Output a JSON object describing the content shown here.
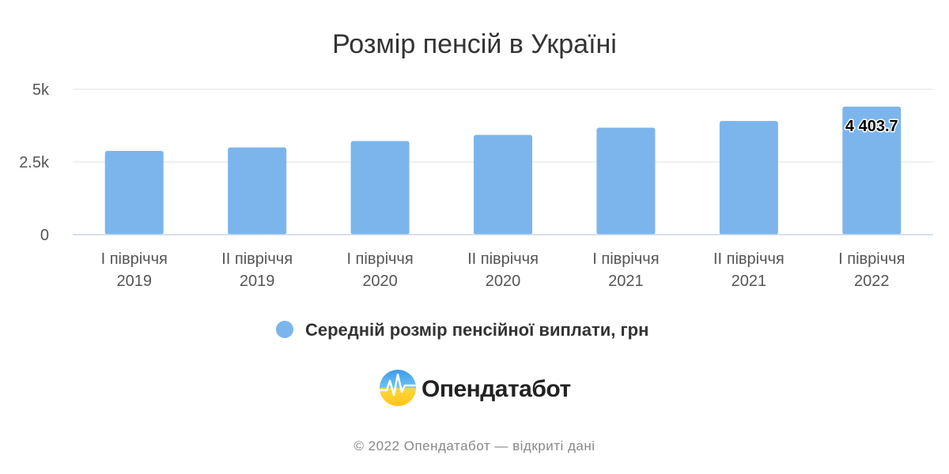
{
  "chart_data": {
    "type": "bar",
    "title": "Розмір пенсій в Україні",
    "categories": [
      [
        "I півріччя",
        "2019"
      ],
      [
        "II півріччя",
        "2019"
      ],
      [
        "I півріччя",
        "2020"
      ],
      [
        "II півріччя",
        "2020"
      ],
      [
        "I півріччя",
        "2021"
      ],
      [
        "II півріччя",
        "2021"
      ],
      [
        "I півріччя",
        "2022"
      ]
    ],
    "series": [
      {
        "name": "Середній розмір пенсійної виплати, грн",
        "color": "#7cb5ec",
        "values": [
          2882,
          3000,
          3220,
          3430,
          3680,
          3910,
          4403.7
        ]
      }
    ],
    "data_labels": [
      {
        "index": 6,
        "text": "4 403.7"
      }
    ],
    "ylim": [
      0,
      5000
    ],
    "yticks": [
      {
        "value": 0,
        "label": "0"
      },
      {
        "value": 2500,
        "label": "2.5k"
      },
      {
        "value": 5000,
        "label": "5k"
      }
    ],
    "xlabel": "",
    "ylabel": "",
    "grid": true,
    "legend_position": "bottom-center"
  },
  "branding": {
    "name": "Опендатабот",
    "footer": "© 2022 Опендатабот — відкриті дані"
  }
}
